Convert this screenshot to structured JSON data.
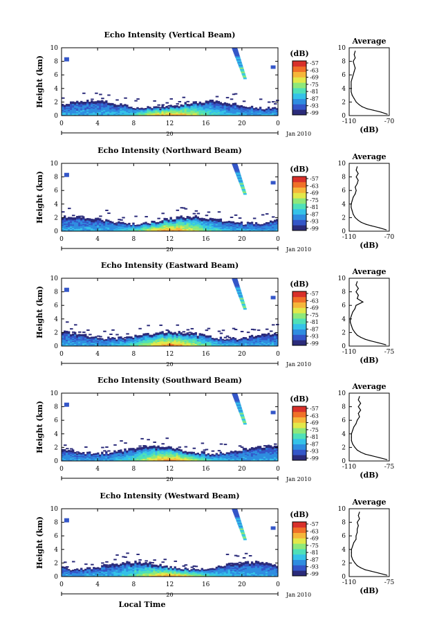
{
  "chart_data": [
    {
      "type": "heatmap",
      "title": "Echo Intensity (Vertical Beam)",
      "ylabel": "Height (km)",
      "yticks": [
        "0",
        "2",
        "4",
        "6",
        "8",
        "10"
      ],
      "ylim": [
        0,
        10
      ],
      "xticks": [
        "0",
        "4",
        "8",
        "12",
        "16",
        "20",
        "0"
      ],
      "xlim": [
        0,
        24
      ],
      "date_label": "20",
      "month_label": "Jan 2010",
      "colorbar": {
        "unit": "(dB)",
        "ticks": [
          "-57",
          "-63",
          "-69",
          "-75",
          "-81",
          "-87",
          "-93",
          "-99"
        ]
      },
      "average": {
        "title": "Average",
        "xlabel": "(dB)",
        "xticks": [
          "-110",
          "-70"
        ],
        "xlim": [
          -110,
          -70
        ],
        "yticks": [
          "0",
          "2",
          "4",
          "6",
          "8",
          "10"
        ],
        "profile": [
          [
            0.2,
            -72
          ],
          [
            0.5,
            -78
          ],
          [
            0.8,
            -86
          ],
          [
            1.0,
            -92
          ],
          [
            1.3,
            -97
          ],
          [
            1.6,
            -100
          ],
          [
            2.0,
            -103
          ],
          [
            2.5,
            -105
          ],
          [
            3.0,
            -107
          ],
          [
            3.5,
            -108
          ],
          [
            4.0,
            -108
          ],
          [
            4.5,
            -108
          ],
          [
            5.0,
            -108
          ],
          [
            5.5,
            -107
          ],
          [
            6.0,
            -106
          ],
          [
            6.5,
            -105
          ],
          [
            7.0,
            -104
          ],
          [
            7.5,
            -105
          ],
          [
            8.0,
            -106
          ],
          [
            8.5,
            -104
          ],
          [
            9.0,
            -105
          ],
          [
            9.5,
            -104
          ]
        ]
      }
    },
    {
      "type": "heatmap",
      "title": "Echo Intensity (Northward Beam)",
      "ylabel": "Height (km)",
      "yticks": [
        "0",
        "2",
        "4",
        "6",
        "8",
        "10"
      ],
      "ylim": [
        0,
        10
      ],
      "xticks": [
        "0",
        "4",
        "8",
        "12",
        "16",
        "20",
        "0"
      ],
      "xlim": [
        0,
        24
      ],
      "date_label": "20",
      "month_label": "Jan 2010",
      "colorbar": {
        "unit": "(dB)",
        "ticks": [
          "-57",
          "-63",
          "-69",
          "-75",
          "-81",
          "-87",
          "-93",
          "-99"
        ]
      },
      "average": {
        "title": "Average",
        "xlabel": "(dB)",
        "xticks": [
          "-110",
          "-70"
        ],
        "xlim": [
          -110,
          -70
        ],
        "yticks": [
          "0",
          "2",
          "4",
          "6",
          "8",
          "10"
        ],
        "profile": [
          [
            0.2,
            -73
          ],
          [
            0.5,
            -80
          ],
          [
            0.8,
            -88
          ],
          [
            1.0,
            -93
          ],
          [
            1.3,
            -98
          ],
          [
            1.6,
            -101
          ],
          [
            2.0,
            -104
          ],
          [
            2.5,
            -106
          ],
          [
            3.0,
            -107
          ],
          [
            3.5,
            -108
          ],
          [
            4.0,
            -108
          ],
          [
            4.5,
            -107
          ],
          [
            5.0,
            -106
          ],
          [
            5.5,
            -104
          ],
          [
            6.0,
            -103
          ],
          [
            6.5,
            -104
          ],
          [
            7.0,
            -102
          ],
          [
            7.5,
            -101
          ],
          [
            8.0,
            -103
          ],
          [
            8.5,
            -101
          ],
          [
            9.0,
            -103
          ],
          [
            9.5,
            -102
          ]
        ]
      }
    },
    {
      "type": "heatmap",
      "title": "Echo Intensity (Eastward Beam)",
      "ylabel": "Height (km)",
      "yticks": [
        "0",
        "2",
        "4",
        "6",
        "8",
        "10"
      ],
      "ylim": [
        0,
        10
      ],
      "xticks": [
        "0",
        "4",
        "8",
        "12",
        "16",
        "20",
        "0"
      ],
      "xlim": [
        0,
        24
      ],
      "date_label": "20",
      "month_label": "Jan 2010",
      "colorbar": {
        "unit": "(dB)",
        "ticks": [
          "-57",
          "-63",
          "-69",
          "-75",
          "-81",
          "-87",
          "-93",
          "-99"
        ]
      },
      "average": {
        "title": "Average",
        "xlabel": "(dB)",
        "xticks": [
          "-110",
          "-75"
        ],
        "xlim": [
          -110,
          -75
        ],
        "yticks": [
          "0",
          "2",
          "4",
          "6",
          "8",
          "10"
        ],
        "profile": [
          [
            0.2,
            -78
          ],
          [
            0.5,
            -85
          ],
          [
            0.8,
            -92
          ],
          [
            1.0,
            -96
          ],
          [
            1.3,
            -100
          ],
          [
            1.6,
            -103
          ],
          [
            2.0,
            -105
          ],
          [
            2.5,
            -107
          ],
          [
            3.0,
            -108
          ],
          [
            3.5,
            -109
          ],
          [
            4.0,
            -109
          ],
          [
            4.5,
            -108
          ],
          [
            5.0,
            -107
          ],
          [
            5.5,
            -105
          ],
          [
            6.0,
            -104
          ],
          [
            6.5,
            -98
          ],
          [
            7.0,
            -103
          ],
          [
            7.5,
            -102
          ],
          [
            8.0,
            -104
          ],
          [
            8.5,
            -102
          ],
          [
            9.0,
            -104
          ],
          [
            9.5,
            -103
          ]
        ]
      }
    },
    {
      "type": "heatmap",
      "title": "Echo Intensity (Southward Beam)",
      "ylabel": "Height (km)",
      "yticks": [
        "0",
        "2",
        "4",
        "6",
        "8",
        "10"
      ],
      "ylim": [
        0,
        10
      ],
      "xticks": [
        "0",
        "4",
        "8",
        "12",
        "16",
        "20",
        "0"
      ],
      "xlim": [
        0,
        24
      ],
      "date_label": "20",
      "month_label": "Jan 2010",
      "colorbar": {
        "unit": "(dB)",
        "ticks": [
          "-57",
          "-63",
          "-69",
          "-75",
          "-81",
          "-87",
          "-93",
          "-99"
        ]
      },
      "average": {
        "title": "Average",
        "xlabel": "(dB)",
        "xticks": [
          "-110",
          "-75"
        ],
        "xlim": [
          -110,
          -75
        ],
        "yticks": [
          "0",
          "2",
          "4",
          "6",
          "8",
          "10"
        ],
        "profile": [
          [
            0.2,
            -77
          ],
          [
            0.5,
            -84
          ],
          [
            0.8,
            -91
          ],
          [
            1.0,
            -96
          ],
          [
            1.3,
            -100
          ],
          [
            1.6,
            -103
          ],
          [
            2.0,
            -105
          ],
          [
            2.5,
            -107
          ],
          [
            3.0,
            -108
          ],
          [
            3.5,
            -108
          ],
          [
            4.0,
            -108
          ],
          [
            4.5,
            -107
          ],
          [
            5.0,
            -106
          ],
          [
            5.5,
            -104
          ],
          [
            6.0,
            -103
          ],
          [
            6.5,
            -101
          ],
          [
            7.0,
            -102
          ],
          [
            7.5,
            -100
          ],
          [
            8.0,
            -102
          ],
          [
            8.5,
            -100
          ],
          [
            9.0,
            -102
          ],
          [
            9.5,
            -101
          ]
        ]
      }
    },
    {
      "type": "heatmap",
      "title": "Echo Intensity (Westward Beam)",
      "ylabel": "Height (km)",
      "yticks": [
        "0",
        "2",
        "4",
        "6",
        "8",
        "10"
      ],
      "ylim": [
        0,
        10
      ],
      "xticks": [
        "0",
        "4",
        "8",
        "12",
        "16",
        "20",
        "0"
      ],
      "xlim": [
        0,
        24
      ],
      "xlabel": "Local Time",
      "date_label": "20",
      "month_label": "Jan 2010",
      "colorbar": {
        "unit": "(dB)",
        "ticks": [
          "-57",
          "-63",
          "-69",
          "-75",
          "-81",
          "-87",
          "-93",
          "-99"
        ]
      },
      "average": {
        "title": "Average",
        "xlabel": "(dB)",
        "xticks": [
          "-110",
          "-75"
        ],
        "xlim": [
          -110,
          -75
        ],
        "yticks": [
          "0",
          "2",
          "4",
          "6",
          "8",
          "10"
        ],
        "profile": [
          [
            0.2,
            -77
          ],
          [
            0.5,
            -84
          ],
          [
            0.8,
            -91
          ],
          [
            1.0,
            -96
          ],
          [
            1.3,
            -100
          ],
          [
            1.6,
            -103
          ],
          [
            2.0,
            -105
          ],
          [
            2.5,
            -107
          ],
          [
            3.0,
            -108
          ],
          [
            3.5,
            -108
          ],
          [
            4.0,
            -108
          ],
          [
            4.5,
            -107
          ],
          [
            5.0,
            -106
          ],
          [
            5.5,
            -104
          ],
          [
            6.0,
            -104
          ],
          [
            6.5,
            -103
          ],
          [
            7.0,
            -103
          ],
          [
            7.5,
            -102
          ],
          [
            8.0,
            -103
          ],
          [
            8.5,
            -101
          ],
          [
            9.0,
            -102
          ],
          [
            9.5,
            -101
          ]
        ]
      }
    }
  ],
  "colors": {
    "scale": [
      "#2b2b7a",
      "#3456c8",
      "#2f8de0",
      "#35c2e8",
      "#4fe0b8",
      "#8ee87a",
      "#e2e84a",
      "#f5b63a",
      "#f07028",
      "#d8302a"
    ]
  }
}
